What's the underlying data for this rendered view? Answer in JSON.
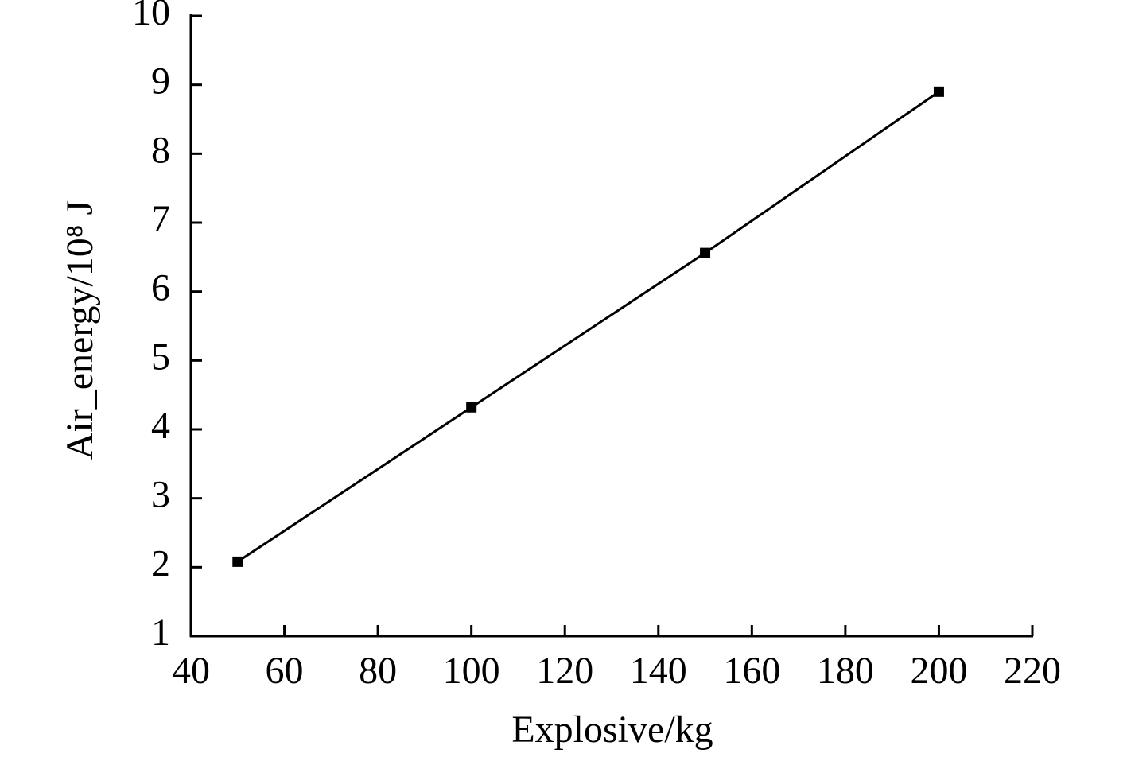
{
  "chart_data": {
    "type": "line",
    "x_label": "Explosive/kg",
    "y_label": "Air_energy/10⁸ J",
    "x": [
      50,
      100,
      150,
      200
    ],
    "series": [
      {
        "name": "Air energy",
        "color": "#000000",
        "values": [
          2.08,
          4.32,
          6.56,
          8.9
        ]
      }
    ],
    "xlim": [
      40,
      220
    ],
    "xticks": [
      40,
      60,
      80,
      100,
      120,
      140,
      160,
      180,
      200,
      220
    ],
    "ylim": [
      1,
      10
    ],
    "yticks": [
      1,
      2,
      3,
      4,
      5,
      6,
      7,
      8,
      9,
      10
    ],
    "grid": false,
    "legend": false,
    "marker": "square"
  }
}
